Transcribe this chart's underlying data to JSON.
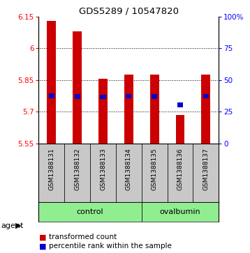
{
  "title": "GDS5289 / 10547820",
  "samples": [
    "GSM1388131",
    "GSM1388132",
    "GSM1388133",
    "GSM1388134",
    "GSM1388135",
    "GSM1388136",
    "GSM1388137"
  ],
  "bar_tops": [
    6.13,
    6.08,
    5.855,
    5.875,
    5.875,
    5.685,
    5.875
  ],
  "bar_bottom": 5.55,
  "percentile_values": [
    5.776,
    5.772,
    5.77,
    5.773,
    5.771,
    5.732,
    5.773
  ],
  "ylim_left": [
    5.55,
    6.15
  ],
  "ylim_right": [
    0,
    100
  ],
  "yticks_left": [
    5.55,
    5.7,
    5.85,
    6.0,
    6.15
  ],
  "yticks_right": [
    0,
    25,
    50,
    75,
    100
  ],
  "ytick_labels_left": [
    "5.55",
    "5.7",
    "5.85",
    "6",
    "6.15"
  ],
  "ytick_labels_right": [
    "0",
    "25",
    "50",
    "75",
    "100%"
  ],
  "grid_yticks": [
    5.7,
    5.85,
    6.0
  ],
  "control_indices": [
    0,
    1,
    2,
    3
  ],
  "ovalbumin_indices": [
    4,
    5,
    6
  ],
  "group_color": "#90EE90",
  "bar_color": "#CC0000",
  "percentile_color": "#0000CC",
  "label_row_color": "#C8C8C8",
  "agent_label": "agent",
  "legend_items": [
    {
      "color": "#CC0000",
      "label": "transformed count"
    },
    {
      "color": "#0000CC",
      "label": "percentile rank within the sample"
    }
  ]
}
